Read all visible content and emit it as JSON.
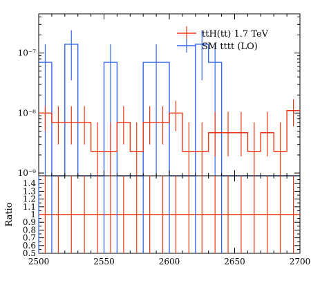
{
  "chart_data": {
    "type": "line",
    "x_range": [
      2500,
      2700
    ],
    "x_ticks": [
      2500,
      2550,
      2600,
      2650,
      2700
    ],
    "x_tick_labels": [
      "2500",
      "2550",
      "2600",
      "2650",
      "2700"
    ],
    "main": {
      "y_scale": "log",
      "y_range": [
        9e-10,
        4.5e-07
      ],
      "y_ticks": [
        1e-09,
        1e-08,
        1e-07
      ],
      "y_tick_labels": [
        "10⁻⁹",
        "10⁻⁸",
        "10⁻⁷"
      ],
      "ylabel": ""
    },
    "ratio": {
      "ylabel": "Ratio",
      "y_range": [
        0.5,
        1.5
      ],
      "y_ticks": [
        0.5,
        0.6,
        0.7,
        0.8,
        0.9,
        1,
        1.1,
        1.2,
        1.3,
        1.4
      ],
      "y_tick_labels": [
        "0.5",
        "0.6",
        "0.7",
        "0.8",
        "0.9",
        "1",
        "1.1",
        "1.2",
        "1.3",
        "1.4"
      ]
    },
    "legend_position": "top-right",
    "series": [
      {
        "name": "ttH(tt) 1.7 TeV",
        "color": "#ee3311",
        "bins": [
          {
            "x0": 2500,
            "x1": 2510,
            "y": 1e-08,
            "lo": 5e-09,
            "hi": 1.3e-08
          },
          {
            "x0": 2510,
            "x1": 2520,
            "y": 7e-09,
            "lo": 3e-09,
            "hi": 1.3e-08
          },
          {
            "x0": 2520,
            "x1": 2530,
            "y": 7e-09,
            "lo": 3e-09,
            "hi": 1.3e-08
          },
          {
            "x0": 2530,
            "x1": 2540,
            "y": 7e-09,
            "lo": 3e-09,
            "hi": 1.3e-08
          },
          {
            "x0": 2540,
            "x1": 2550,
            "y": 2.3e-09,
            "lo": 9e-10,
            "hi": 7e-09
          },
          {
            "x0": 2550,
            "x1": 2560,
            "y": 2.3e-09,
            "lo": 9e-10,
            "hi": 7e-09
          },
          {
            "x0": 2560,
            "x1": 2570,
            "y": 7e-09,
            "lo": 3e-09,
            "hi": 1.3e-08
          },
          {
            "x0": 2570,
            "x1": 2580,
            "y": 2.3e-09,
            "lo": 9e-10,
            "hi": 7e-09
          },
          {
            "x0": 2580,
            "x1": 2590,
            "y": 7e-09,
            "lo": 3e-09,
            "hi": 1.3e-08
          },
          {
            "x0": 2590,
            "x1": 2600,
            "y": 7e-09,
            "lo": 3e-09,
            "hi": 1.3e-08
          },
          {
            "x0": 2600,
            "x1": 2610,
            "y": 1e-08,
            "lo": 5e-09,
            "hi": 1.6e-08
          },
          {
            "x0": 2610,
            "x1": 2620,
            "y": 2.3e-09,
            "lo": 9e-10,
            "hi": 7e-09
          },
          {
            "x0": 2620,
            "x1": 2630,
            "y": 2.3e-09,
            "lo": 9e-10,
            "hi": 7e-09
          },
          {
            "x0": 2630,
            "x1": 2640,
            "y": 4.7e-09,
            "lo": 1.9e-09,
            "hi": 1.05e-08
          },
          {
            "x0": 2640,
            "x1": 2650,
            "y": 4.7e-09,
            "lo": 1.9e-09,
            "hi": 1.05e-08
          },
          {
            "x0": 2650,
            "x1": 2660,
            "y": 4.7e-09,
            "lo": 1.9e-09,
            "hi": 1.05e-08
          },
          {
            "x0": 2660,
            "x1": 2670,
            "y": 2.3e-09,
            "lo": 9e-10,
            "hi": 7e-09
          },
          {
            "x0": 2670,
            "x1": 2680,
            "y": 4.7e-09,
            "lo": 1.9e-09,
            "hi": 1.05e-08
          },
          {
            "x0": 2680,
            "x1": 2690,
            "y": 2.3e-09,
            "lo": 9e-10,
            "hi": 7e-09
          },
          {
            "x0": 2690,
            "x1": 2700,
            "y": 1.1e-08,
            "lo": 6e-09,
            "hi": 1.7e-08
          }
        ],
        "ratio": [
          1,
          1,
          1,
          1,
          1,
          1,
          1,
          1,
          1,
          1,
          1,
          1,
          1,
          1,
          1,
          1,
          1,
          1,
          1,
          1
        ]
      },
      {
        "name": "SM tttt (LO)",
        "color": "#3366ee",
        "bins": [
          {
            "x0": 2500,
            "x1": 2510,
            "y": 7e-08,
            "lo": 9e-10,
            "hi": 1.4e-07
          },
          {
            "x0": 2510,
            "x1": 2520,
            "y": 9e-10,
            "lo": 9e-10,
            "hi": 9e-10
          },
          {
            "x0": 2520,
            "x1": 2530,
            "y": 1.4e-07,
            "lo": 3.5e-08,
            "hi": 2.4e-07
          },
          {
            "x0": 2530,
            "x1": 2550,
            "y": 9e-10,
            "lo": 9e-10,
            "hi": 9e-10
          },
          {
            "x0": 2550,
            "x1": 2560,
            "y": 7e-08,
            "lo": 9e-10,
            "hi": 1.4e-07
          },
          {
            "x0": 2560,
            "x1": 2580,
            "y": 9e-10,
            "lo": 9e-10,
            "hi": 9e-10
          },
          {
            "x0": 2580,
            "x1": 2600,
            "y": 7e-08,
            "lo": 9e-10,
            "hi": 1.4e-07
          },
          {
            "x0": 2600,
            "x1": 2620,
            "y": 9e-10,
            "lo": 9e-10,
            "hi": 9e-10
          },
          {
            "x0": 2620,
            "x1": 2630,
            "y": 1.4e-07,
            "lo": 3.5e-08,
            "hi": 2.4e-07
          },
          {
            "x0": 2630,
            "x1": 2640,
            "y": 7e-08,
            "lo": 9e-10,
            "hi": 1.4e-07
          },
          {
            "x0": 2640,
            "x1": 2700,
            "y": 9e-10,
            "lo": 9e-10,
            "hi": 9e-10
          }
        ],
        "ratio_segments": [
          [
            2500,
            2510
          ],
          [
            2550,
            2560
          ],
          [
            2580,
            2600
          ],
          [
            2620,
            2640
          ]
        ]
      }
    ]
  }
}
